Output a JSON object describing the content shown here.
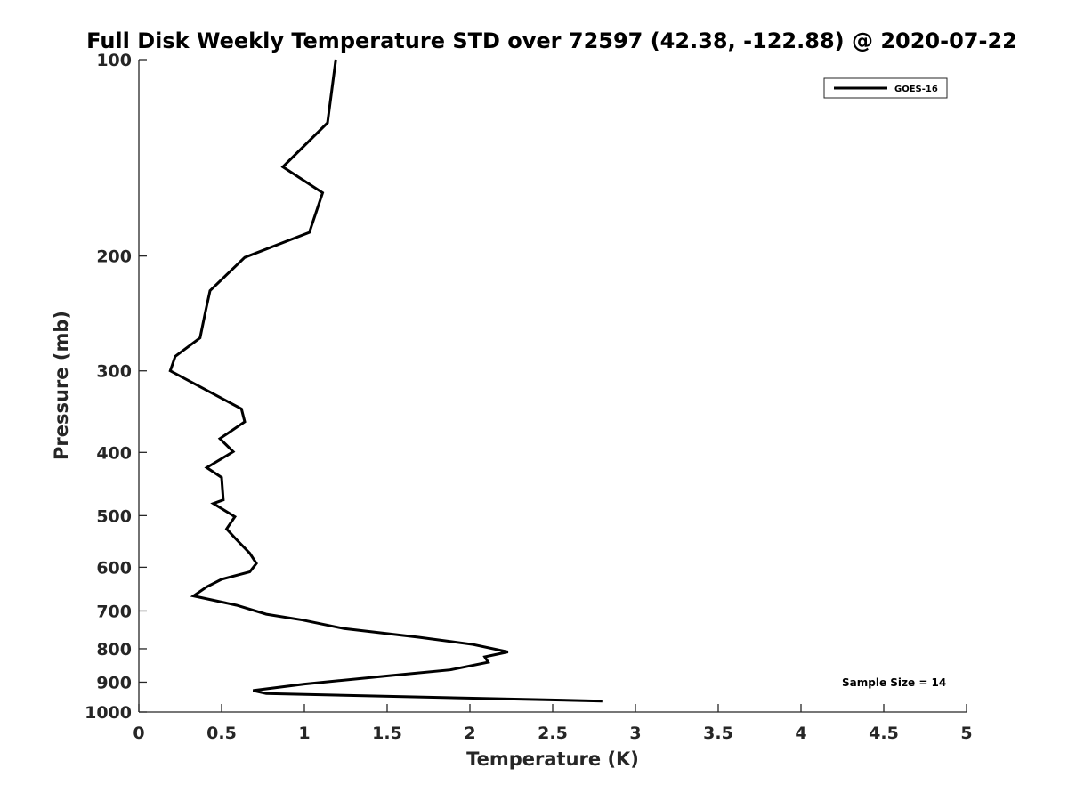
{
  "chart_data": {
    "type": "line",
    "title": "Full Disk Weekly Temperature STD over 72597 (42.38, -122.88) @ 2020-07-22",
    "xlabel": "Temperature (K)",
    "ylabel": "Pressure (mb)",
    "xlim": [
      0,
      5
    ],
    "ylim": [
      100,
      1000
    ],
    "y_scale": "log",
    "y_reversed": true,
    "grid": false,
    "legend_position": "top-right",
    "x_ticks": [
      0,
      0.5,
      1,
      1.5,
      2,
      2.5,
      3,
      3.5,
      4,
      4.5,
      5
    ],
    "x_tick_labels": [
      "0",
      "0.5",
      "1",
      "1.5",
      "2",
      "2.5",
      "3",
      "3.5",
      "4",
      "4.5",
      "5"
    ],
    "y_ticks": [
      100,
      200,
      300,
      400,
      500,
      600,
      700,
      800,
      900,
      1000
    ],
    "y_tick_labels": [
      "100",
      "200",
      "300",
      "400",
      "500",
      "600",
      "700",
      "800",
      "900",
      "1000"
    ],
    "series": [
      {
        "name": "GOES-16",
        "color": "#000000",
        "x": [
          1.19,
          1.14,
          0.87,
          1.11,
          1.03,
          0.64,
          0.43,
          0.4,
          0.37,
          0.22,
          0.19,
          0.62,
          0.64,
          0.49,
          0.57,
          0.41,
          0.5,
          0.51,
          0.45,
          0.58,
          0.53,
          0.58,
          0.67,
          0.71,
          0.67,
          0.5,
          0.41,
          0.33,
          0.59,
          0.77,
          0.99,
          1.24,
          1.69,
          2.02,
          2.23,
          2.09,
          2.11,
          1.88,
          1.51,
          1.0,
          0.69,
          0.77,
          2.8
        ],
        "y": [
          100,
          125,
          146,
          160,
          184,
          201,
          226,
          245,
          267,
          285,
          300,
          343,
          359,
          381,
          399,
          422,
          437,
          473,
          479,
          502,
          524,
          541,
          571,
          592,
          610,
          626,
          643,
          664,
          686,
          708,
          723,
          745,
          768,
          788,
          809,
          823,
          839,
          862,
          880,
          906,
          927,
          937,
          962
        ]
      }
    ],
    "annotations": [
      {
        "text": "Sample Size = 14"
      }
    ]
  }
}
